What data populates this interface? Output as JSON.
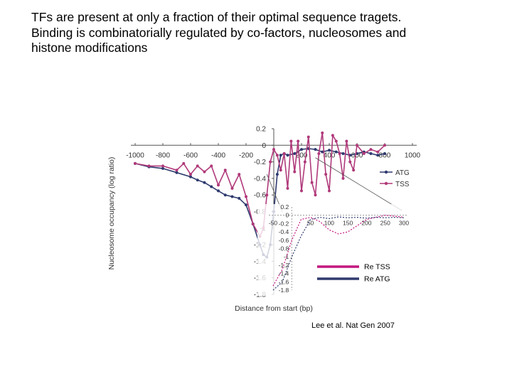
{
  "slide": {
    "title_lines": [
      "TFs are present at only a fraction of their optimal sequence tragets.",
      "Binding is combinatorially regulated by co-factors, nucleosomes and",
      "histone modifications"
    ],
    "citation": "Lee et al. Nat Gen 2007"
  },
  "chart_data": [
    {
      "type": "line",
      "xlabel": "Distance from start (bp)",
      "ylabel": "Nucleosome occupancy (log ratio)",
      "xlim": [
        -1000,
        1000
      ],
      "ylim": [
        -1.8,
        0.2
      ],
      "x_ticks": [
        -1000,
        -800,
        -600,
        -400,
        -200,
        0,
        200,
        400,
        600,
        800,
        1000
      ],
      "y_ticks": [
        0.2,
        0,
        -0.2,
        -0.4,
        -0.6,
        -0.8,
        -1,
        -1.2,
        -1.4,
        -1.6,
        -1.8
      ],
      "legend": "inside right",
      "series": [
        {
          "name": "ATG",
          "color": "#2e3a6e",
          "x": [
            -1000,
            -900,
            -800,
            -700,
            -600,
            -550,
            -500,
            -450,
            -400,
            -350,
            -300,
            -250,
            -200,
            -150,
            -100,
            -75,
            -50,
            -25,
            0,
            25,
            50,
            75,
            100,
            150,
            200,
            250,
            300,
            350,
            400,
            450,
            500,
            550,
            600,
            650,
            700,
            750,
            800
          ],
          "y": [
            -0.22,
            -0.26,
            -0.28,
            -0.33,
            -0.38,
            -0.42,
            -0.45,
            -0.5,
            -0.55,
            -0.6,
            -0.62,
            -0.64,
            -0.72,
            -0.95,
            -1.2,
            -1.32,
            -1.35,
            -1.2,
            -0.8,
            -0.35,
            -0.12,
            -0.1,
            -0.12,
            -0.1,
            -0.05,
            -0.04,
            -0.05,
            -0.08,
            -0.06,
            -0.08,
            -0.1,
            -0.12,
            -0.1,
            -0.08,
            -0.1,
            -0.12,
            -0.1
          ]
        },
        {
          "name": "TSS",
          "color": "#b0397a",
          "x": [
            -1000,
            -900,
            -800,
            -700,
            -650,
            -600,
            -550,
            -500,
            -450,
            -400,
            -350,
            -300,
            -250,
            -200,
            -150,
            -100,
            -75,
            -50,
            -25,
            0,
            25,
            50,
            75,
            100,
            125,
            150,
            175,
            200,
            225,
            250,
            275,
            300,
            325,
            350,
            375,
            400,
            425,
            450,
            475,
            500,
            525,
            550,
            575,
            600,
            650,
            700,
            750,
            800
          ],
          "y": [
            -0.22,
            -0.25,
            -0.25,
            -0.3,
            -0.22,
            -0.35,
            -0.25,
            -0.32,
            -0.25,
            -0.48,
            -0.3,
            -0.52,
            -0.35,
            -0.62,
            -0.95,
            -1.1,
            -1.0,
            -0.6,
            -0.2,
            -0.05,
            -0.12,
            -0.3,
            -0.1,
            -0.52,
            0.05,
            -0.32,
            0.05,
            -0.55,
            -0.2,
            0.1,
            -0.45,
            -0.6,
            -0.1,
            0.15,
            -0.35,
            -0.55,
            0.12,
            0.05,
            -0.1,
            -0.4,
            0.05,
            -0.2,
            -0.3,
            0.0,
            -0.1,
            -0.05,
            -0.08,
            0.0
          ]
        }
      ]
    },
    {
      "type": "line",
      "panel": "inset",
      "xlim": [
        -50,
        300
      ],
      "ylim": [
        -1.8,
        0.2
      ],
      "x_ticks": [
        -50,
        0,
        50,
        100,
        150,
        200,
        250,
        300
      ],
      "y_ticks": [
        0.2,
        0,
        -0.2,
        -0.4,
        -0.6,
        -0.8,
        -1,
        -1.2,
        -1.4,
        -1.6,
        -1.8
      ],
      "series": [
        {
          "name": "Re TSS",
          "color": "#c2177f",
          "x": [
            -50,
            -25,
            0,
            25,
            50,
            75,
            100,
            125,
            150,
            175,
            200,
            225,
            250,
            275,
            300
          ],
          "y": [
            -1.7,
            -1.3,
            -0.6,
            -0.1,
            -0.05,
            -0.15,
            -0.35,
            -0.45,
            -0.4,
            -0.25,
            -0.1,
            -0.05,
            0.0,
            -0.02,
            -0.05
          ]
        },
        {
          "name": "Re ATG",
          "color": "#2e3a6e",
          "x": [
            -50,
            -25,
            0,
            25,
            50,
            75,
            100,
            125,
            150,
            175,
            200,
            225,
            250,
            275,
            300
          ],
          "y": [
            -1.8,
            -1.6,
            -1.0,
            -0.5,
            -0.1,
            -0.05,
            -0.08,
            -0.04,
            -0.06,
            -0.05,
            -0.07,
            -0.05,
            -0.06,
            -0.05,
            -0.06
          ]
        }
      ]
    }
  ]
}
